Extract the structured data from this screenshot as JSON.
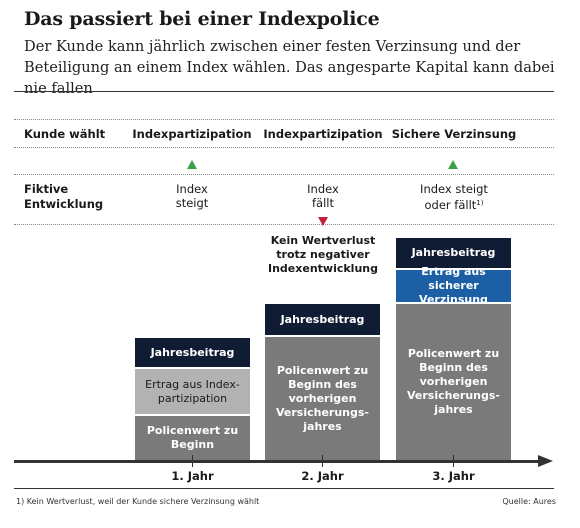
{
  "header": {
    "title": "Das passiert bei einer Indexpolice",
    "subtitle": "Der Kunde kann jährlich zwischen einer festen Verzinsung und der Beteili­gung an einem Index wählen. Das angesparte Kapital kann dabei nie fallen"
  },
  "rows": {
    "kunde_waehlt": "Kunde wählt",
    "fiktive_line1": "Fiktive",
    "fiktive_line2": "Entwicklung"
  },
  "columns": [
    {
      "choice": "Indexpartizipation",
      "trend_line1": "Index",
      "trend_line2": "steigt",
      "trend_direction": "up",
      "note": "",
      "boxes": {
        "top": "Jahresbeitrag",
        "middle": "Ertrag aus Index­partizipation",
        "bottom": "Policenwert zu Beginn"
      },
      "year": "1. Jahr"
    },
    {
      "choice": "Indexpartizipation",
      "trend_line1": "Index",
      "trend_line2": "fällt",
      "trend_direction": "down",
      "note": "Kein Wertverlust trotz negativer Indexentwicklung",
      "boxes": {
        "top": "Jahresbeitrag",
        "bottom": "Policenwert zu Beginn des vorherigen Versicherungs­jahres"
      },
      "year": "2. Jahr"
    },
    {
      "choice": "Sichere Verzinsung",
      "trend_line1": "Index steigt",
      "trend_line2": "oder fällt",
      "trend_footnote_marker": "1)",
      "trend_direction": "up",
      "boxes": {
        "top": "Jahresbeitrag",
        "middle": "Ertrag aus sicherer Verzinsung",
        "bottom": "Policenwert zu Beginn des vorherigen Versicherungs­jahres"
      },
      "year": "3. Jahr"
    }
  ],
  "footer": {
    "footnote": "1) Kein Wertverlust, weil der Kunde sichere Verzinsung wählt",
    "source": "Quelle: Aures"
  },
  "colors": {
    "navy": "#0f1c33",
    "blue": "#1c5fa5",
    "gray": "#7a7a7a",
    "light_gray": "#b2b2b2",
    "arrow_up": "#3aa148",
    "arrow_down": "#c0233a"
  }
}
